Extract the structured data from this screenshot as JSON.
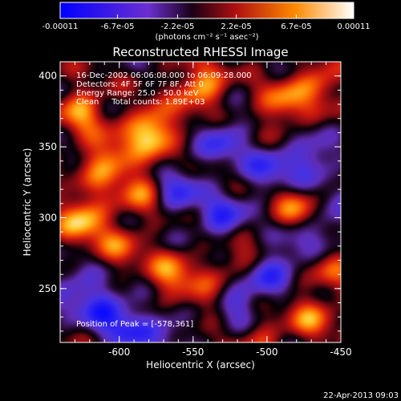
{
  "chart_data": {
    "type": "heatmap",
    "title": "Reconstructed RHESSI Image",
    "xlabel": "Heliocentric X (arcsec)",
    "ylabel": "Heliocentric Y (arcsec)",
    "xlim": [
      -640,
      -450
    ],
    "ylim": [
      212,
      410
    ],
    "x_ticks": [
      "-600",
      "-550",
      "-500",
      "-450"
    ],
    "x_tick_values": [
      -600,
      -550,
      -500,
      -450
    ],
    "y_ticks": [
      "250",
      "300",
      "350",
      "400"
    ],
    "y_tick_values": [
      250,
      300,
      350,
      400
    ],
    "colorbar": {
      "min": -0.00011,
      "max": 0.00011,
      "tick_labels": [
        "-0.00011",
        "-6.7e-05",
        "-2.2e-05",
        "2.2e-05",
        "6.7e-05",
        "0.00011"
      ],
      "tick_values": [
        -0.00011,
        -6.7e-05,
        -2.2e-05,
        2.2e-05,
        6.7e-05,
        0.00011
      ],
      "units_label": "(photons cm⁻² s⁻¹ asec⁻²)",
      "colors": [
        "#0000ff",
        "#6b2fd0",
        "#1a0016",
        "#b01010",
        "#ff8a00",
        "#ffffff"
      ]
    },
    "annotations": [
      "16-Dec-2002 06:06:08.000 to 06:09:28.000",
      "Detectors: 4F 5F 6F 7F 8F, Att 0",
      "Energy Range: 25.0 - 50.0 keV",
      "Clean     Total counts: 1.89E+03"
    ],
    "peak_label": "Position of Peak = [-578,361]",
    "peak": [
      -578,
      361
    ],
    "blobs": [
      {
        "x": -578,
        "y": 361,
        "amp": 1.0
      },
      {
        "x": -625,
        "y": 300,
        "amp": 0.85
      },
      {
        "x": -608,
        "y": 340,
        "amp": 0.75
      },
      {
        "x": -585,
        "y": 320,
        "amp": 0.55
      },
      {
        "x": -545,
        "y": 392,
        "amp": 0.75
      },
      {
        "x": -490,
        "y": 380,
        "amp": 0.6
      },
      {
        "x": -465,
        "y": 395,
        "amp": 0.55
      },
      {
        "x": -625,
        "y": 375,
        "amp": 0.65
      },
      {
        "x": -600,
        "y": 280,
        "amp": 0.45
      },
      {
        "x": -565,
        "y": 260,
        "amp": 0.6
      },
      {
        "x": -545,
        "y": 240,
        "amp": 0.45
      },
      {
        "x": -520,
        "y": 270,
        "amp": 0.4
      },
      {
        "x": -480,
        "y": 305,
        "amp": 0.55
      },
      {
        "x": -470,
        "y": 230,
        "amp": 0.55
      },
      {
        "x": -455,
        "y": 265,
        "amp": 0.4
      },
      {
        "x": -505,
        "y": 215,
        "amp": 0.35
      },
      {
        "x": -560,
        "y": 320,
        "amp": -0.6
      },
      {
        "x": -530,
        "y": 300,
        "amp": -0.65
      },
      {
        "x": -500,
        "y": 260,
        "amp": -0.55
      },
      {
        "x": -500,
        "y": 335,
        "amp": -0.55
      },
      {
        "x": -470,
        "y": 340,
        "amp": -0.6
      },
      {
        "x": -530,
        "y": 355,
        "amp": -0.55
      },
      {
        "x": -610,
        "y": 235,
        "amp": -0.7
      },
      {
        "x": -590,
        "y": 220,
        "amp": -0.6
      },
      {
        "x": -630,
        "y": 250,
        "amp": -0.45
      },
      {
        "x": -560,
        "y": 225,
        "amp": -0.4
      },
      {
        "x": -455,
        "y": 300,
        "amp": -0.45
      },
      {
        "x": -520,
        "y": 240,
        "amp": -0.5
      },
      {
        "x": -480,
        "y": 280,
        "amp": -0.4
      }
    ]
  },
  "footer": {
    "timestamp": "22-Apr-2013 09:03"
  }
}
